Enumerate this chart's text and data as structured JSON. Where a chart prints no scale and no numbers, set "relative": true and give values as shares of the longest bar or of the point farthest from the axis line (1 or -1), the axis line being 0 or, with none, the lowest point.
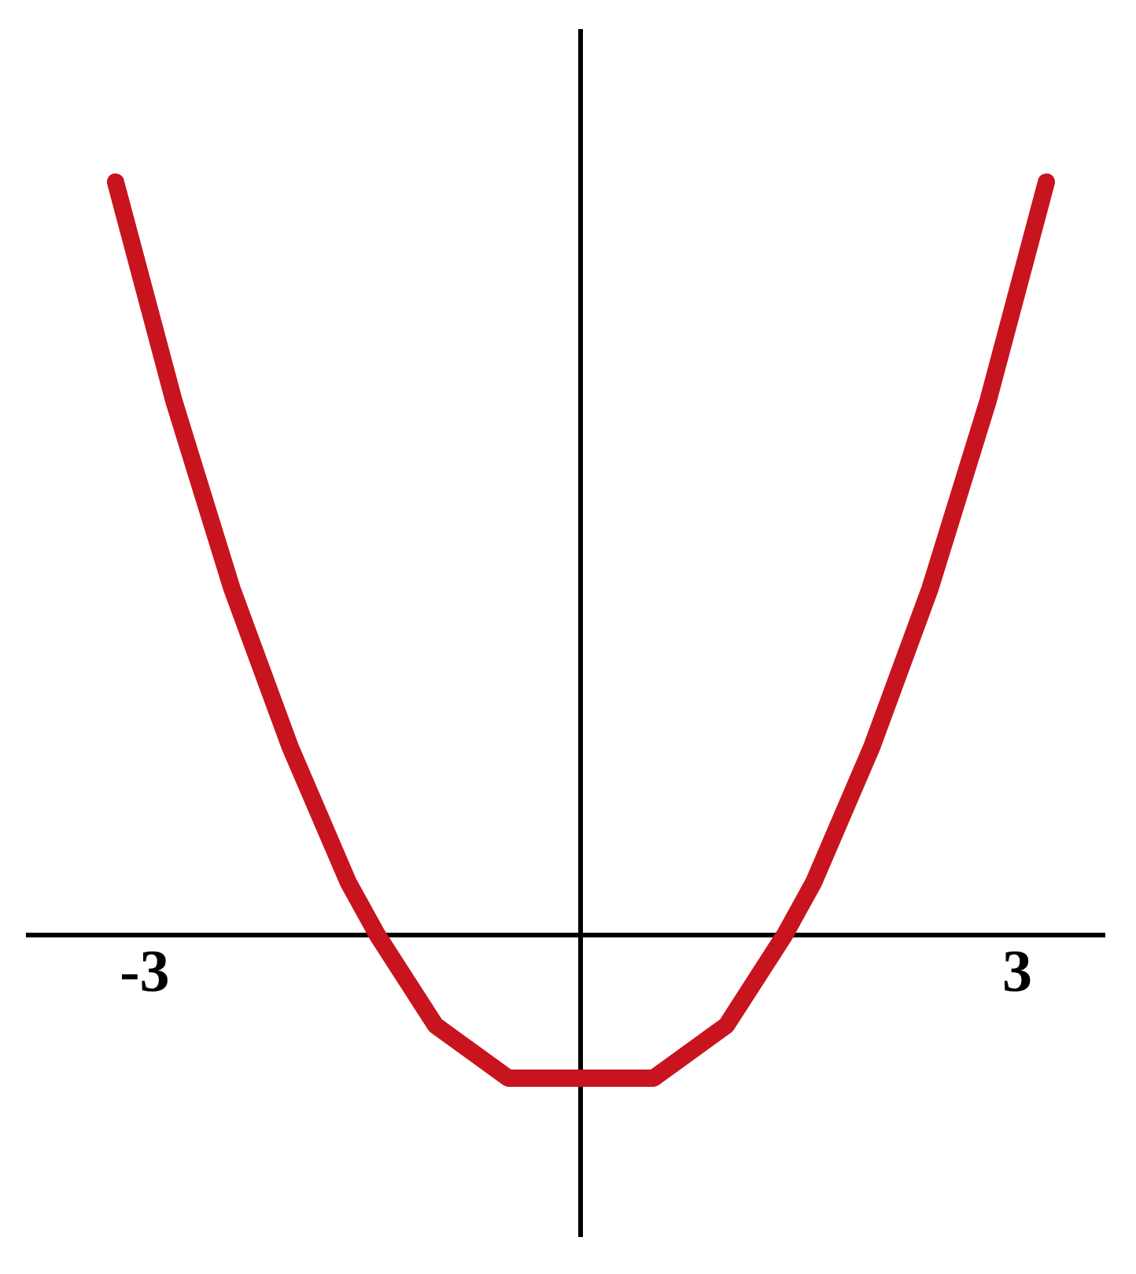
{
  "chart_data": {
    "type": "line",
    "relative": true,
    "x": [
      -3.2,
      -2.8,
      -2.4,
      -2.0,
      -1.6,
      -1.4,
      -1.0,
      -0.5,
      0,
      0.5,
      1.0,
      1.4,
      1.6,
      2.0,
      2.4,
      2.8,
      3.2
    ],
    "xlim": [
      -3.8,
      3.6
    ],
    "xticks": [
      -3,
      3
    ],
    "series": [
      {
        "color": "#c8141e",
        "values": [
          1,
          0.71,
          0.46,
          0.25,
          0.07,
          0,
          -0.12,
          -0.19,
          -0.19,
          -0.19,
          -0.12,
          0,
          0.07,
          0.25,
          0.46,
          0.71,
          1
        ]
      }
    ],
    "grid": false,
    "legend": false,
    "marker": "none",
    "line_style": "solid"
  }
}
